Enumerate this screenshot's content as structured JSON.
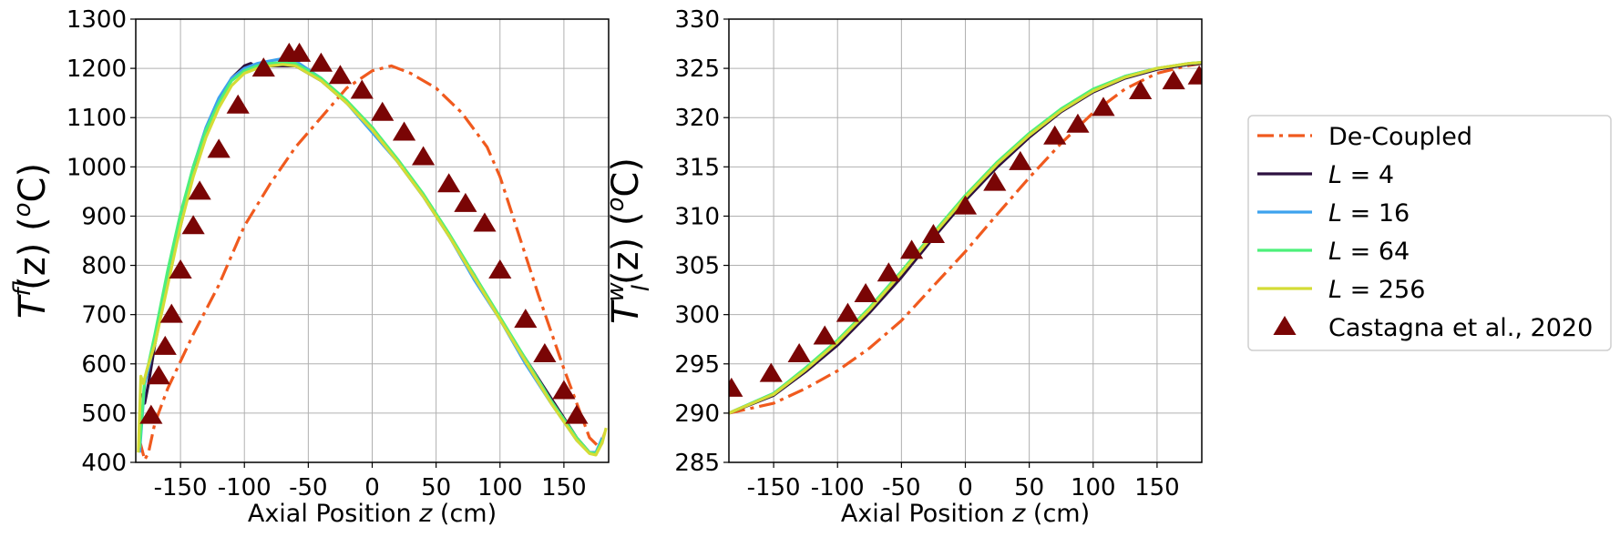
{
  "chart_data": [
    {
      "type": "line",
      "xlabel": "Axial Position z (cm)",
      "ylabel": "T_l^f(z) (°C)",
      "ylabel_main": "T",
      "ylabel_sup": "f",
      "ylabel_sub": "l",
      "ylabel_rest": "(z) (",
      "ylabel_unit_sup": "o",
      "ylabel_end": "C)",
      "xlim": [
        -185,
        185
      ],
      "ylim": [
        400,
        1300
      ],
      "xticks": [
        -150,
        -100,
        -50,
        0,
        50,
        100,
        150
      ],
      "yticks": [
        400,
        500,
        600,
        700,
        800,
        900,
        1000,
        1100,
        1200,
        1300
      ],
      "grid": true,
      "series": [
        {
          "name": "De-Coupled",
          "color": "#f05a1e",
          "style": "dashdot",
          "x": [
            -182,
            -178,
            -175,
            -170,
            -160,
            -150,
            -140,
            -120,
            -100,
            -80,
            -60,
            -40,
            -20,
            0,
            15,
            30,
            50,
            70,
            90,
            100,
            110,
            130,
            150,
            170,
            178,
            182
          ],
          "y": [
            445,
            405,
            420,
            480,
            550,
            605,
            660,
            760,
            880,
            965,
            1040,
            1100,
            1160,
            1195,
            1205,
            1190,
            1160,
            1110,
            1040,
            980,
            900,
            740,
            590,
            450,
            430,
            460
          ]
        },
        {
          "name": "L = 4",
          "color": "#2d1140",
          "style": "solid",
          "x": [
            -180,
            -178,
            -175,
            -170,
            -160,
            -150,
            -140,
            -130,
            -120,
            -110,
            -100,
            -95,
            -90,
            -80,
            -60,
            -40,
            -20,
            0,
            20,
            40,
            60,
            80,
            100,
            120,
            140,
            160,
            170,
            175,
            180
          ],
          "y": [
            540,
            520,
            560,
            640,
            770,
            880,
            990,
            1070,
            1130,
            1180,
            1205,
            1210,
            1200,
            1205,
            1205,
            1175,
            1130,
            1080,
            1010,
            940,
            860,
            780,
            690,
            610,
            530,
            450,
            420,
            420,
            440
          ]
        },
        {
          "name": "L = 16",
          "color": "#3da2ee",
          "style": "solid",
          "x": [
            -182,
            -178,
            -175,
            -170,
            -160,
            -150,
            -140,
            -130,
            -120,
            -110,
            -100,
            -90,
            -80,
            -70,
            -60,
            -40,
            -20,
            0,
            20,
            40,
            60,
            80,
            100,
            120,
            140,
            160,
            170,
            175,
            180
          ],
          "y": [
            420,
            560,
            590,
            650,
            780,
            900,
            1000,
            1080,
            1140,
            1180,
            1200,
            1210,
            1215,
            1220,
            1215,
            1180,
            1130,
            1070,
            1010,
            940,
            860,
            770,
            690,
            600,
            520,
            445,
            420,
            420,
            450
          ]
        },
        {
          "name": "L = 64",
          "color": "#4df07a",
          "style": "solid",
          "x": [
            -182,
            -178,
            -175,
            -170,
            -160,
            -150,
            -140,
            -130,
            -120,
            -110,
            -100,
            -90,
            -80,
            -70,
            -60,
            -40,
            -20,
            0,
            20,
            40,
            60,
            80,
            100,
            120,
            140,
            160,
            170,
            175,
            180
          ],
          "y": [
            430,
            570,
            600,
            660,
            790,
            905,
            1000,
            1075,
            1130,
            1175,
            1195,
            1205,
            1210,
            1212,
            1210,
            1180,
            1135,
            1080,
            1015,
            945,
            865,
            780,
            695,
            610,
            525,
            450,
            420,
            418,
            445
          ]
        },
        {
          "name": "L = 256",
          "color": "#d4dc36",
          "style": "solid",
          "x": [
            -183,
            -181,
            -179,
            -176,
            -170,
            -160,
            -150,
            -140,
            -130,
            -120,
            -110,
            -100,
            -90,
            -80,
            -70,
            -60,
            -40,
            -20,
            0,
            20,
            40,
            60,
            80,
            100,
            120,
            140,
            160,
            170,
            175,
            180,
            183
          ],
          "y": [
            420,
            575,
            560,
            590,
            640,
            760,
            880,
            980,
            1060,
            1120,
            1165,
            1190,
            1200,
            1205,
            1208,
            1205,
            1175,
            1130,
            1075,
            1010,
            940,
            860,
            775,
            690,
            605,
            520,
            445,
            418,
            415,
            440,
            470
          ]
        },
        {
          "name": "Castagna et al., 2020",
          "color": "#7a0505",
          "style": "marker",
          "x": [
            -173,
            -167,
            -162,
            -157,
            -150,
            -140,
            -135,
            -120,
            -105,
            -85,
            -65,
            -57,
            -40,
            -25,
            -8,
            8,
            25,
            40,
            60,
            73,
            88,
            100,
            120,
            135,
            150,
            160
          ],
          "y": [
            495,
            575,
            635,
            700,
            790,
            880,
            950,
            1035,
            1125,
            1200,
            1230,
            1230,
            1210,
            1185,
            1155,
            1110,
            1070,
            1020,
            965,
            925,
            885,
            790,
            690,
            620,
            545,
            495
          ]
        }
      ]
    },
    {
      "type": "line",
      "xlabel": "Axial Position z (cm)",
      "ylabel": "T_l^w(z) (°C)",
      "ylabel_main": "T",
      "ylabel_sup": "w",
      "ylabel_sub": "l",
      "ylabel_rest": "(z) (",
      "ylabel_unit_sup": "o",
      "ylabel_end": "C)",
      "xlim": [
        -185,
        185
      ],
      "ylim": [
        285,
        330
      ],
      "xticks": [
        -150,
        -100,
        -50,
        0,
        50,
        100,
        150
      ],
      "yticks": [
        285,
        290,
        295,
        300,
        305,
        310,
        315,
        320,
        325,
        330
      ],
      "grid": true,
      "series": [
        {
          "name": "De-Coupled",
          "color": "#f05a1e",
          "style": "dashdot",
          "x": [
            -185,
            -150,
            -125,
            -100,
            -75,
            -50,
            -25,
            0,
            25,
            50,
            75,
            100,
            125,
            150,
            175,
            185
          ],
          "y": [
            290.0,
            291.0,
            292.5,
            294.3,
            296.6,
            299.4,
            302.9,
            306.4,
            310.2,
            313.9,
            317.4,
            320.5,
            322.9,
            324.5,
            325.3,
            325.5
          ]
        },
        {
          "name": "L = 4",
          "color": "#2d1140",
          "style": "solid",
          "x": [
            -185,
            -150,
            -125,
            -100,
            -75,
            -50,
            -25,
            0,
            25,
            50,
            75,
            100,
            125,
            150,
            175,
            185
          ],
          "y": [
            290.0,
            291.8,
            294.2,
            296.9,
            300.2,
            303.8,
            307.8,
            311.6,
            315.0,
            318.0,
            320.6,
            322.6,
            324.0,
            324.9,
            325.4,
            325.5
          ]
        },
        {
          "name": "L = 16",
          "color": "#3da2ee",
          "style": "solid",
          "x": [
            -185,
            -150,
            -125,
            -100,
            -75,
            -50,
            -25,
            0,
            25,
            50,
            75,
            100,
            125,
            150,
            175,
            185
          ],
          "y": [
            290.0,
            292.0,
            294.5,
            297.3,
            300.6,
            304.3,
            308.2,
            312.0,
            315.4,
            318.3,
            320.8,
            322.8,
            324.2,
            325.0,
            325.5,
            325.6
          ]
        },
        {
          "name": "L = 64",
          "color": "#4df07a",
          "style": "solid",
          "x": [
            -185,
            -150,
            -125,
            -100,
            -75,
            -50,
            -25,
            0,
            25,
            50,
            75,
            100,
            125,
            150,
            175,
            185
          ],
          "y": [
            290.0,
            292.0,
            294.6,
            297.4,
            300.7,
            304.4,
            308.3,
            312.1,
            315.5,
            318.4,
            320.9,
            322.9,
            324.2,
            325.0,
            325.5,
            325.6
          ]
        },
        {
          "name": "L = 256",
          "color": "#d4dc36",
          "style": "solid",
          "x": [
            -185,
            -150,
            -125,
            -100,
            -75,
            -50,
            -25,
            0,
            25,
            50,
            75,
            100,
            125,
            150,
            175,
            185
          ],
          "y": [
            290.0,
            291.9,
            294.4,
            297.2,
            300.5,
            304.2,
            308.1,
            311.9,
            315.3,
            318.2,
            320.7,
            322.7,
            324.1,
            325.0,
            325.5,
            325.6
          ]
        },
        {
          "name": "Castagna et al., 2020",
          "color": "#7a0505",
          "style": "marker",
          "x": [
            -183,
            -152,
            -130,
            -110,
            -92,
            -78,
            -60,
            -42,
            -25,
            0,
            23,
            43,
            70,
            88,
            108,
            137,
            163,
            183
          ],
          "y": [
            292.5,
            294.0,
            296.0,
            297.8,
            300.1,
            302.1,
            304.2,
            306.5,
            308.1,
            311.0,
            313.4,
            315.5,
            318.1,
            319.3,
            321.0,
            322.7,
            323.7,
            324.2
          ]
        }
      ]
    }
  ],
  "legend": {
    "placement": "right",
    "entries": [
      {
        "label_pre": "De-Coupled",
        "label_var": "",
        "label_post": "",
        "color": "#f05a1e",
        "style": "dashdot"
      },
      {
        "label_pre": "",
        "label_var": "L",
        "label_post": " = 4",
        "color": "#2d1140",
        "style": "solid"
      },
      {
        "label_pre": "",
        "label_var": "L",
        "label_post": " = 16",
        "color": "#3da2ee",
        "style": "solid"
      },
      {
        "label_pre": "",
        "label_var": "L",
        "label_post": " = 64",
        "color": "#4df07a",
        "style": "solid"
      },
      {
        "label_pre": "",
        "label_var": "L",
        "label_post": " = 256",
        "color": "#d4dc36",
        "style": "solid"
      },
      {
        "label_pre": "Castagna et al., 2020",
        "label_var": "",
        "label_post": "",
        "color": "#7a0505",
        "style": "marker"
      }
    ]
  },
  "axis_xlabel_pre": "Axial Position ",
  "axis_xlabel_var": "z",
  "axis_xlabel_post": " (cm)"
}
